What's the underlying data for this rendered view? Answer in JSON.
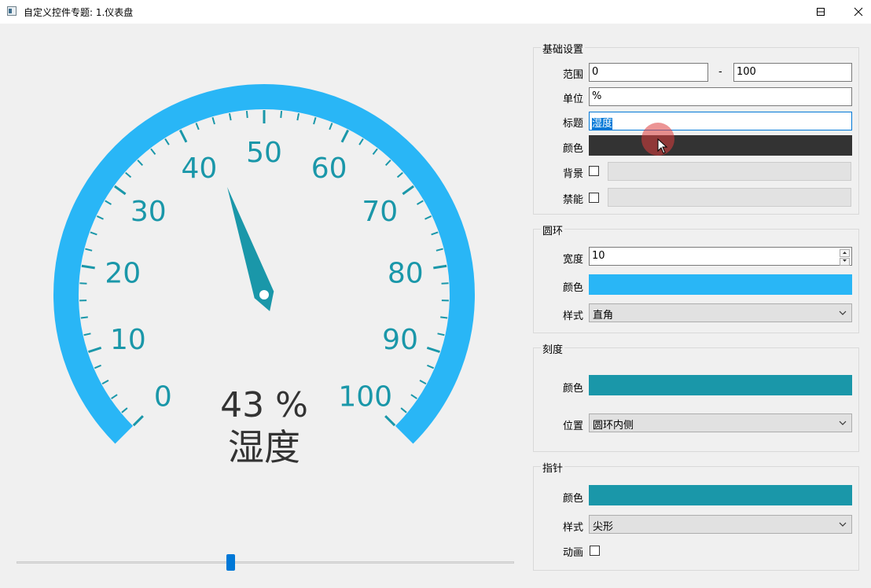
{
  "window": {
    "title": "自定义控件专题: 1.仪表盘",
    "controls": [
      "minimize-icon",
      "maximize-icon",
      "close-icon"
    ]
  },
  "gauge": {
    "min": 0,
    "max": 100,
    "value": 43,
    "unit": "%",
    "value_text": "43 %",
    "title": "湿度",
    "scale_labels": [
      "0",
      "10",
      "20",
      "30",
      "40",
      "50",
      "60",
      "70",
      "80",
      "90",
      "100"
    ],
    "ring_color": "#29b6f6",
    "scale_color": "#1a97a9",
    "pointer_color": "#1a97a9",
    "text_color": "#333333"
  },
  "slider": {
    "value": 43,
    "min": 0,
    "max": 100
  },
  "basic": {
    "title": "基础设置",
    "range_label": "范围",
    "range_min": "0",
    "range_sep": "-",
    "range_max": "100",
    "unit_label": "单位",
    "unit_value": "%",
    "title_label": "标题",
    "title_value": "湿度",
    "color_label": "颜色",
    "color_value": "#333333",
    "bg_label": "背景",
    "bg_checked": false,
    "disable_label": "禁能",
    "disable_checked": false
  },
  "ring": {
    "title": "圆环",
    "width_label": "宽度",
    "width_value": "10",
    "color_label": "颜色",
    "color_value": "#29b6f6",
    "style_label": "样式",
    "style_value": "直角"
  },
  "scale": {
    "title": "刻度",
    "color_label": "颜色",
    "color_value": "#1a97a9",
    "position_label": "位置",
    "position_value": "圆环内侧"
  },
  "pointer": {
    "title": "指针",
    "color_label": "颜色",
    "color_value": "#1a97a9",
    "style_label": "样式",
    "style_value": "尖形",
    "anim_label": "动画",
    "anim_checked": false
  }
}
